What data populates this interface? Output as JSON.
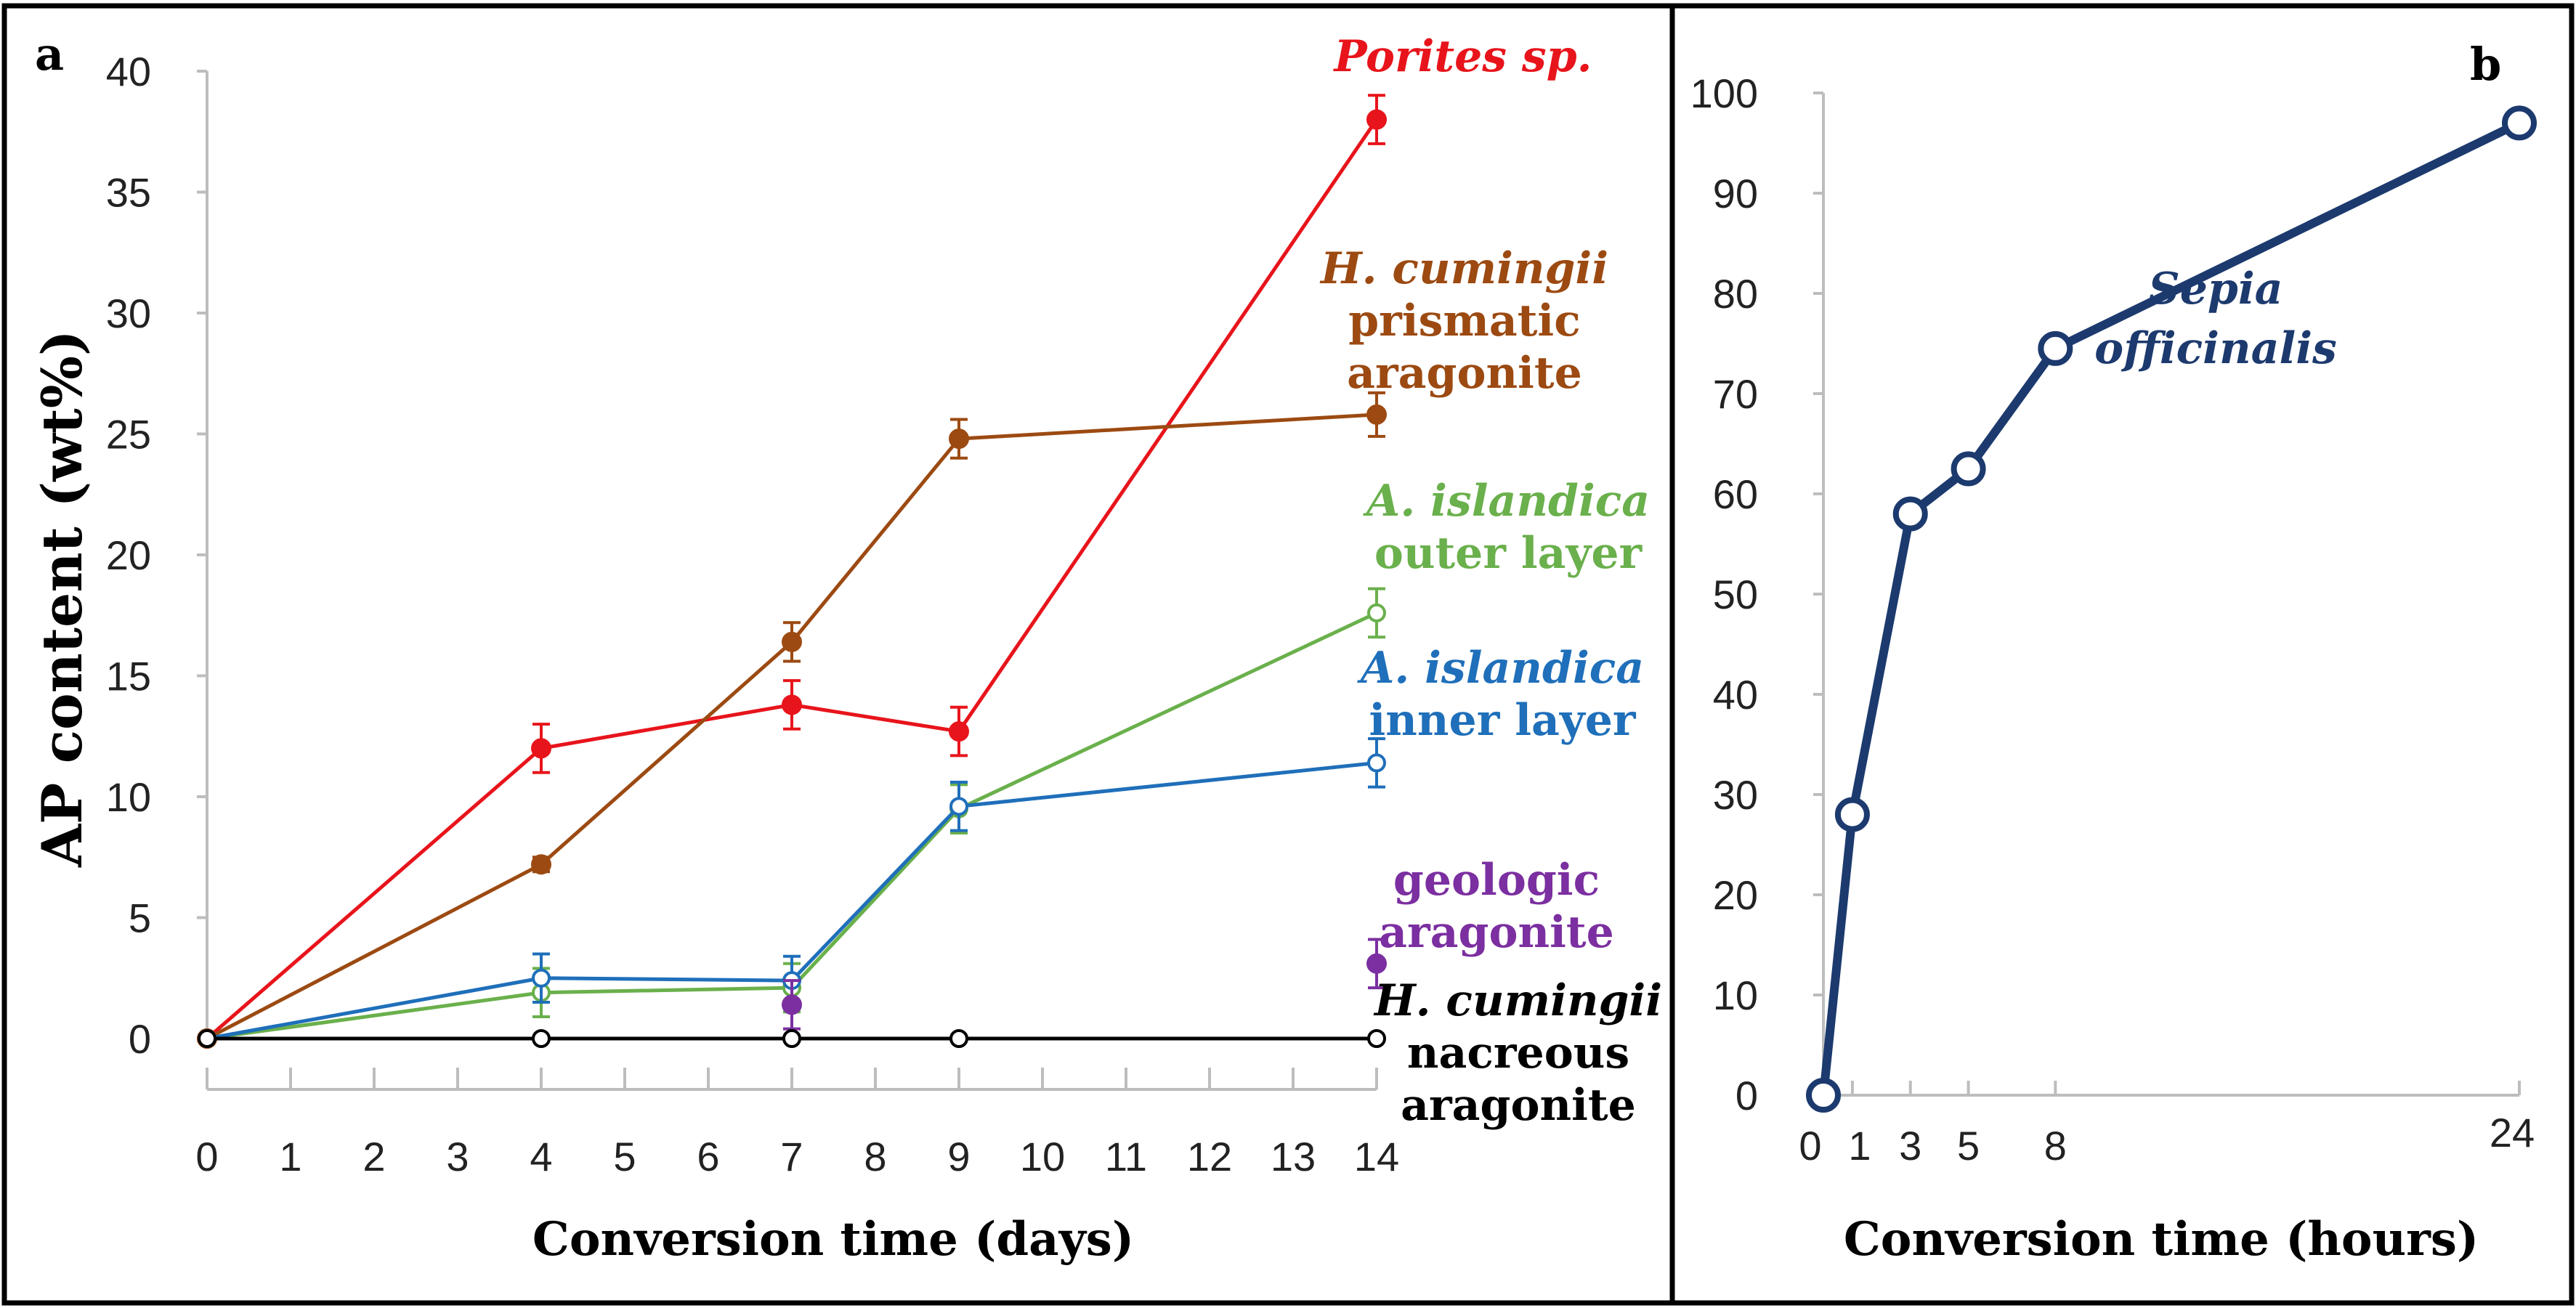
{
  "chart_data": [
    {
      "panel": "a",
      "type": "line",
      "xlabel": "Conversion time (days)",
      "ylabel": "AP content (wt%)",
      "xlim": [
        0,
        14
      ],
      "ylim": [
        0,
        40
      ],
      "xticks": [
        0,
        1,
        2,
        3,
        4,
        5,
        6,
        7,
        8,
        9,
        10,
        11,
        12,
        13,
        14
      ],
      "yticks": [
        0,
        5,
        10,
        15,
        20,
        25,
        30,
        35,
        40
      ],
      "series": [
        {
          "name": "Porites sp.",
          "label_lines": [
            {
              "text": "Porites sp.",
              "italic": true
            }
          ],
          "color": "#e8141b",
          "marker": "filled-circle",
          "x": [
            0,
            4,
            7,
            9,
            14
          ],
          "y": [
            0,
            12.0,
            13.8,
            12.7,
            38.0
          ],
          "err": [
            0,
            1.0,
            1.0,
            1.0,
            1.0
          ]
        },
        {
          "name": "H. cumingii prismatic aragonite",
          "label_lines": [
            {
              "text": "H. cumingii",
              "italic": true
            },
            {
              "text": "prismatic",
              "italic": false
            },
            {
              "text": "aragonite",
              "italic": false
            }
          ],
          "color": "#9c4a12",
          "marker": "filled-circle",
          "x": [
            0,
            4,
            7,
            9,
            14
          ],
          "y": [
            0,
            7.2,
            16.4,
            24.8,
            25.8
          ],
          "err": [
            0,
            0.3,
            0.8,
            0.8,
            0.9
          ]
        },
        {
          "name": "A. islandica outer layer",
          "label_lines": [
            {
              "text": "A. islandica",
              "italic": true
            },
            {
              "text": "outer layer",
              "italic": false
            }
          ],
          "color": "#6ab04c",
          "marker": "open-circle",
          "x": [
            0,
            4,
            7,
            9,
            14
          ],
          "y": [
            0,
            1.9,
            2.1,
            9.5,
            17.6
          ],
          "err": [
            0,
            1.0,
            1.0,
            1.0,
            1.0
          ]
        },
        {
          "name": "A. islandica inner layer",
          "label_lines": [
            {
              "text": "A. islandica",
              "italic": true
            },
            {
              "text": "inner layer",
              "italic": false
            }
          ],
          "color": "#1f6fba",
          "marker": "open-circle",
          "x": [
            0,
            4,
            7,
            9,
            14
          ],
          "y": [
            0,
            2.5,
            2.4,
            9.6,
            11.4
          ],
          "err": [
            0,
            1.0,
            1.0,
            1.0,
            1.0
          ]
        },
        {
          "name": "geologic aragonite",
          "label_lines": [
            {
              "text": "geologic",
              "italic": false
            },
            {
              "text": "aragonite",
              "italic": false
            }
          ],
          "color": "#7b2fa0",
          "marker": "filled-circle",
          "x": [
            7,
            14
          ],
          "y": [
            1.4,
            3.1
          ],
          "err": [
            1.0,
            1.0
          ],
          "connected": false
        },
        {
          "name": "H. cumingii nacreous aragonite",
          "label_lines": [
            {
              "text": "H. cumingii",
              "italic": true
            },
            {
              "text": "nacreous",
              "italic": false
            },
            {
              "text": "aragonite",
              "italic": false
            }
          ],
          "color": "#000000",
          "marker": "open-circle",
          "x": [
            0,
            4,
            7,
            9,
            14
          ],
          "y": [
            0,
            0,
            0,
            0,
            0
          ],
          "err": [
            0,
            0,
            0,
            0,
            0
          ]
        }
      ]
    },
    {
      "panel": "b",
      "type": "line",
      "xlabel": "Conversion time (hours)",
      "ylabel": "",
      "xlim": [
        0,
        24
      ],
      "ylim": [
        0,
        100
      ],
      "xticks": [
        0,
        1,
        3,
        5,
        8,
        24
      ],
      "yticks": [
        0,
        10,
        20,
        30,
        40,
        50,
        60,
        70,
        80,
        90,
        100
      ],
      "series": [
        {
          "name": "Sepia officinalis",
          "label_lines": [
            {
              "text": "Sepia",
              "italic": true
            },
            {
              "text": "officinalis",
              "italic": true
            }
          ],
          "color": "#1c3a6e",
          "marker": "open-circle",
          "x": [
            0,
            1,
            3,
            5,
            8,
            24
          ],
          "y": [
            0,
            28,
            58,
            62.5,
            74.5,
            97
          ]
        }
      ]
    }
  ]
}
